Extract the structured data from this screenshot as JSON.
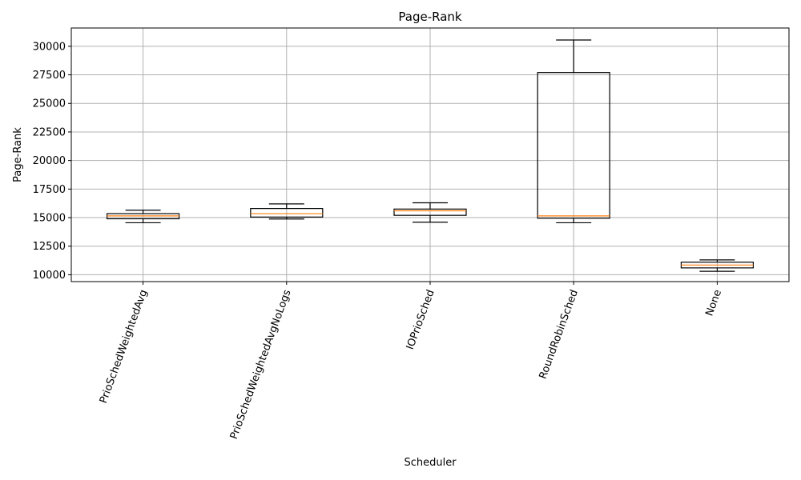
{
  "chart_data": {
    "type": "box",
    "title": "Page-Rank",
    "xlabel": "Scheduler",
    "ylabel": "Page-Rank",
    "ylim": [
      9400,
      31600
    ],
    "yticks": [
      10000,
      12500,
      15000,
      17500,
      20000,
      22500,
      25000,
      27500,
      30000
    ],
    "grid": true,
    "colors": {
      "box": "#000000",
      "median": "#ff7f0e",
      "grid": "#b0b0b0"
    },
    "categories": [
      "PrioSchedWeightedAvg",
      "PrioSchedWeightedAvgNoLogs",
      "IOPrioSched",
      "RoundRobinSched",
      "None"
    ],
    "boxes": [
      {
        "category": "PrioSchedWeightedAvg",
        "whisker_low": 14550,
        "q1": 14900,
        "median": 15150,
        "q3": 15350,
        "whisker_high": 15650
      },
      {
        "category": "PrioSchedWeightedAvgNoLogs",
        "whisker_low": 14880,
        "q1": 15050,
        "median": 15350,
        "q3": 15800,
        "whisker_high": 16200
      },
      {
        "category": "IOPrioSched",
        "whisker_low": 14600,
        "q1": 15200,
        "median": 15600,
        "q3": 15750,
        "whisker_high": 16300
      },
      {
        "category": "RoundRobinSched",
        "whisker_low": 14550,
        "q1": 14950,
        "median": 15150,
        "q3": 27700,
        "whisker_high": 30550
      },
      {
        "category": "None",
        "whisker_low": 10300,
        "q1": 10600,
        "median": 10850,
        "q3": 11100,
        "whisker_high": 11300
      }
    ]
  }
}
